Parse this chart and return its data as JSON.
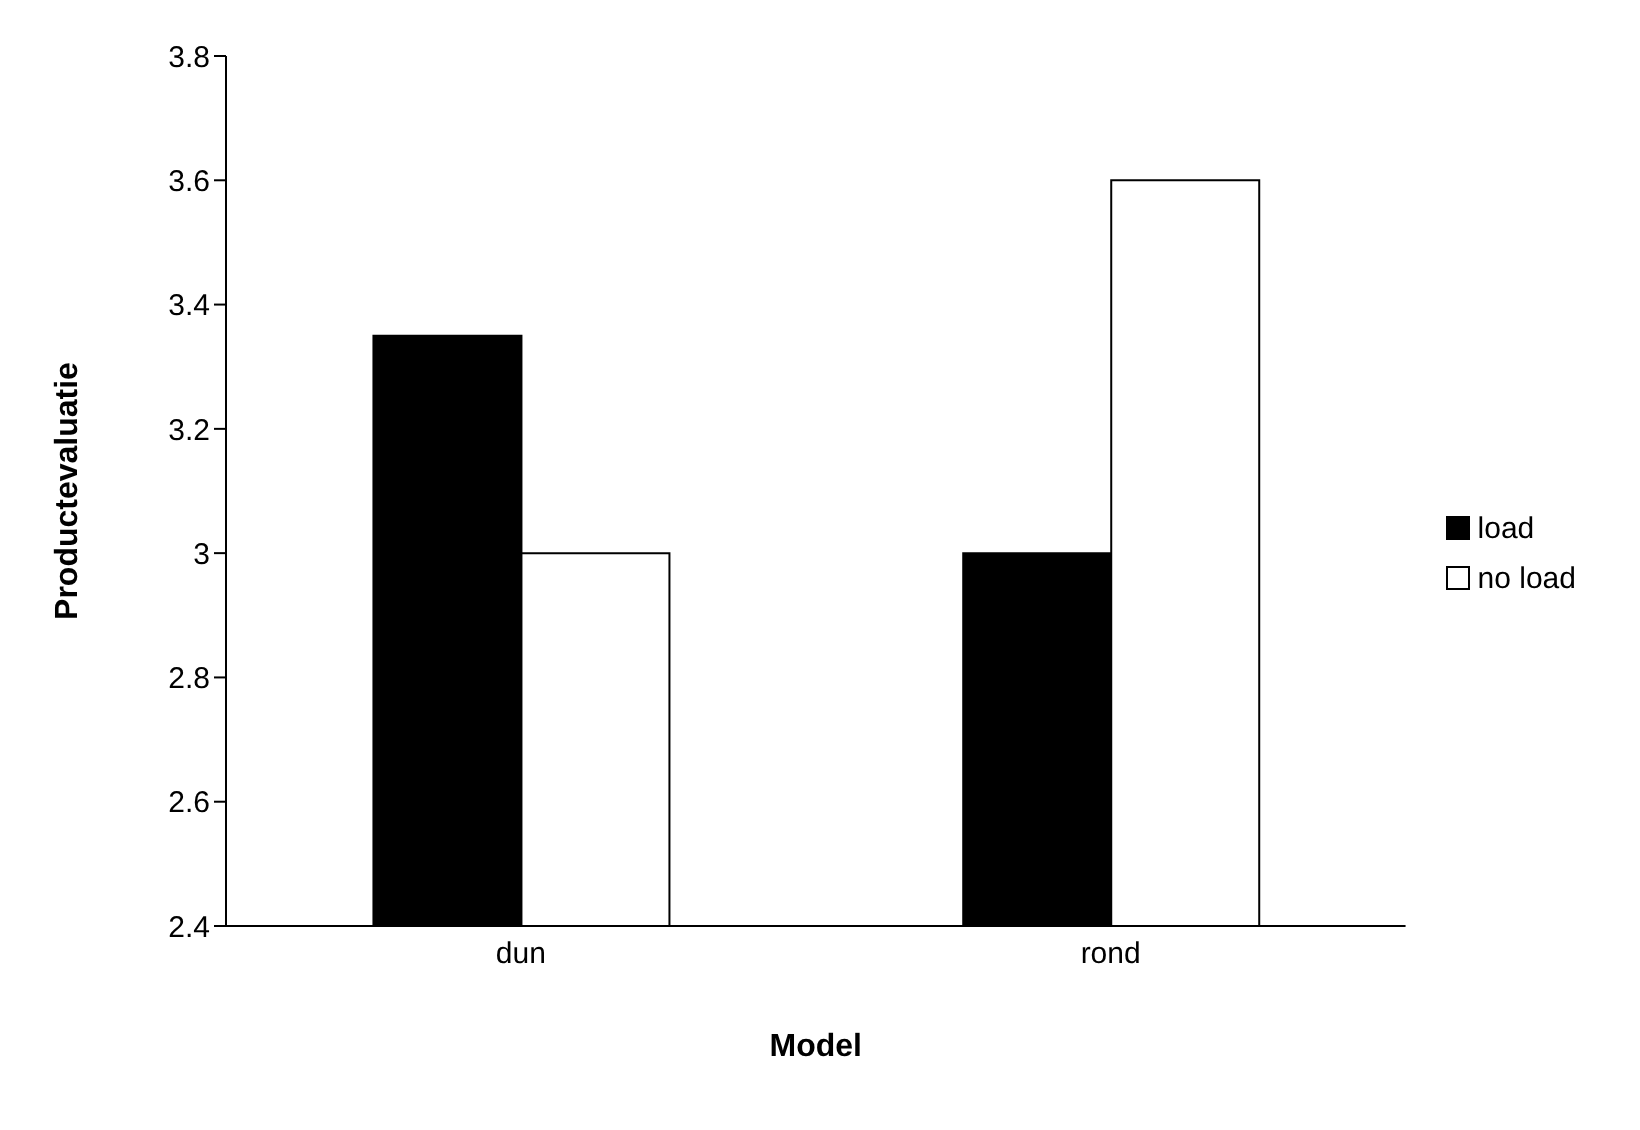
{
  "chart_data": {
    "type": "bar",
    "xlabel": "Model",
    "ylabel": "Productevaluatie",
    "categories": [
      "dun",
      "rond"
    ],
    "series": [
      {
        "name": "load",
        "color": "#000000",
        "values": [
          3.35,
          3.0
        ]
      },
      {
        "name": "no load",
        "color": "#ffffff",
        "values": [
          3.0,
          3.6
        ]
      }
    ],
    "ylim": [
      2.4,
      3.8
    ],
    "yticks": [
      2.4,
      2.6,
      2.8,
      3,
      3.2,
      3.4,
      3.6,
      3.8
    ],
    "grid": false,
    "legend": "right"
  }
}
